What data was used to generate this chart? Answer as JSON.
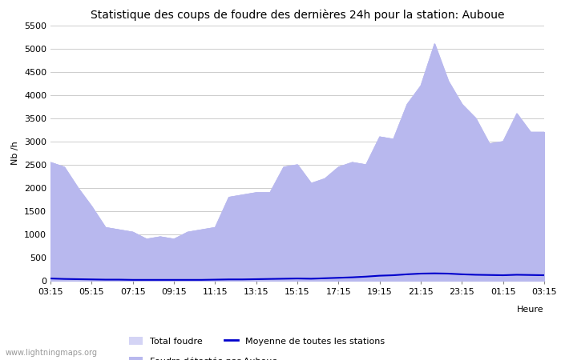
{
  "title": "Statistique des coups de foudre des dernières 24h pour la station: Auboue",
  "ylabel": "Nb /h",
  "xlabel": "Heure",
  "watermark": "www.lightningmaps.org",
  "ylim": [
    0,
    5500
  ],
  "yticks": [
    0,
    500,
    1000,
    1500,
    2000,
    2500,
    3000,
    3500,
    4000,
    4500,
    5000,
    5500
  ],
  "xtick_labels": [
    "03:15",
    "05:15",
    "07:15",
    "09:15",
    "11:15",
    "13:15",
    "15:15",
    "17:15",
    "19:15",
    "21:15",
    "23:15",
    "01:15",
    "03:15"
  ],
  "total_foudre_color": "#d4d4f5",
  "foudre_auboue_color": "#b8b8ee",
  "moyenne_color": "#0000cc",
  "background_color": "#ffffff",
  "grid_color": "#cccccc",
  "title_fontsize": 10,
  "axis_fontsize": 8,
  "tick_fontsize": 8,
  "total_foudre": [
    2550,
    2450,
    2000,
    1600,
    1150,
    1100,
    1050,
    900,
    950,
    900,
    1050,
    1100,
    1150,
    1800,
    1850,
    1900,
    1900,
    2450,
    2500,
    2100,
    2200,
    2450,
    2550,
    2500,
    3100,
    3050,
    3800,
    4200,
    5100,
    4300,
    3800,
    3500,
    2950,
    3000,
    3600,
    3200,
    3200
  ],
  "foudre_auboue": [
    2550,
    2450,
    2000,
    1600,
    1150,
    1100,
    1050,
    900,
    950,
    900,
    1050,
    1100,
    1150,
    1800,
    1850,
    1900,
    1900,
    2450,
    2500,
    2100,
    2200,
    2450,
    2550,
    2500,
    3100,
    3050,
    3800,
    4200,
    5100,
    4300,
    3800,
    3500,
    2950,
    3000,
    3600,
    3200,
    3200
  ],
  "moyenne": [
    50,
    40,
    35,
    30,
    25,
    25,
    20,
    20,
    20,
    20,
    20,
    20,
    25,
    30,
    30,
    35,
    40,
    45,
    50,
    45,
    55,
    65,
    75,
    90,
    110,
    120,
    140,
    155,
    160,
    155,
    140,
    130,
    125,
    120,
    130,
    125,
    120
  ],
  "n_points": 37
}
